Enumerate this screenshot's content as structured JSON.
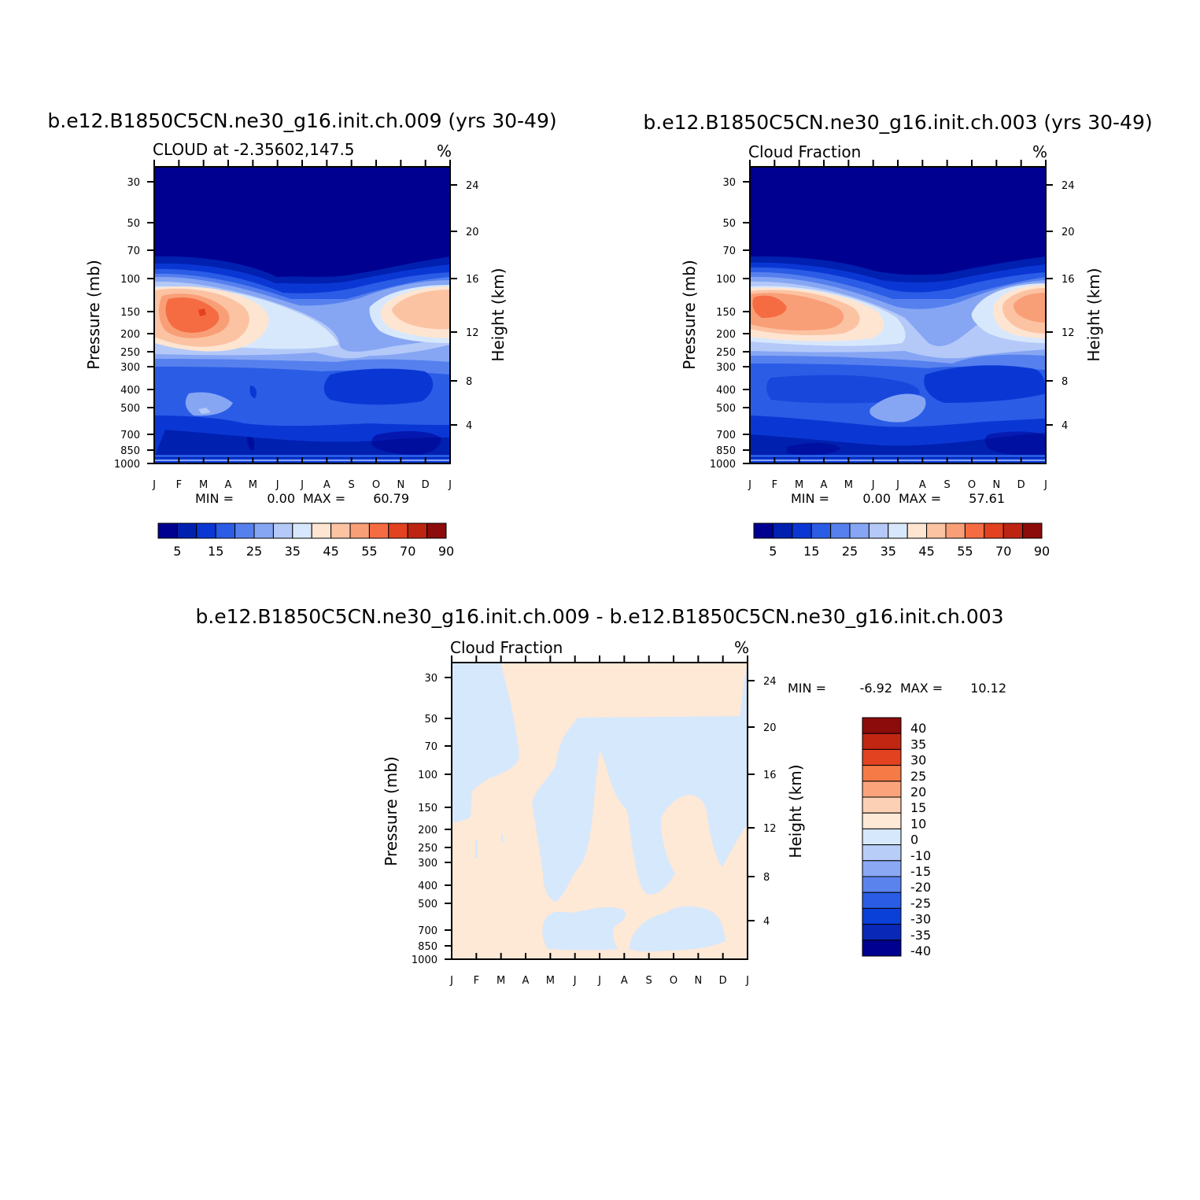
{
  "colors": {
    "seq": [
      "#000090",
      "#0020b0",
      "#0a37d4",
      "#2a5ce6",
      "#5680ee",
      "#86a6f4",
      "#b4c9f8",
      "#d8e8fc",
      "#fde5d2",
      "#fcc3a3",
      "#f99f78",
      "#f66c42",
      "#e2421f",
      "#bd2512",
      "#8c0b0b"
    ],
    "diff_pos": "#fee8d6",
    "diff_neg": "#d6e8fc",
    "diff_bar": [
      "#000090",
      "#0a28b8",
      "#0a3fd8",
      "#2a5ce6",
      "#5a83ee",
      "#8aa8f4",
      "#b8cdf8",
      "#d6e8fc",
      "#fee8d6",
      "#fcd0b4",
      "#fba47c",
      "#f67a46",
      "#e2421f",
      "#c02612",
      "#8c0b0b"
    ]
  },
  "charts": [
    {
      "type": "heatmap",
      "title": "b.e12.B1850C5CN.ne30_g16.init.ch.009 (yrs 30-49)",
      "left_string": "CLOUD at -2.35602,147.5",
      "right_string": "%",
      "ylabel": "Pressure (mb)",
      "y2label": "Height (km)",
      "x_tick_labels": [
        "J",
        "F",
        "M",
        "A",
        "M",
        "J",
        "J",
        "A",
        "S",
        "O",
        "N",
        "D",
        "J"
      ],
      "y_tick_labels": [
        "30",
        "50",
        "70",
        "100",
        "150",
        "200",
        "250",
        "300",
        "400",
        "500",
        "700",
        "850",
        "1000"
      ],
      "y2_tick_labels": [
        "24",
        "20",
        "16",
        "12",
        "8",
        "4"
      ],
      "min_label": "MIN =",
      "min_value": "0.00",
      "max_label": "MAX =",
      "max_value": "60.79",
      "colorbar_labels": [
        "5",
        "15",
        "25",
        "35",
        "45",
        "55",
        "70",
        "90"
      ]
    },
    {
      "type": "heatmap",
      "title": "b.e12.B1850C5CN.ne30_g16.init.ch.003 (yrs 30-49)",
      "left_string": "Cloud Fraction",
      "right_string": "%",
      "ylabel": "Pressure (mb)",
      "y2label": "Height (km)",
      "x_tick_labels": [
        "J",
        "F",
        "M",
        "A",
        "M",
        "J",
        "J",
        "A",
        "S",
        "O",
        "N",
        "D",
        "J"
      ],
      "y_tick_labels": [
        "30",
        "50",
        "70",
        "100",
        "150",
        "200",
        "250",
        "300",
        "400",
        "500",
        "700",
        "850",
        "1000"
      ],
      "y2_tick_labels": [
        "24",
        "20",
        "16",
        "12",
        "8",
        "4"
      ],
      "min_label": "MIN =",
      "min_value": "0.00",
      "max_label": "MAX =",
      "max_value": "57.61",
      "colorbar_labels": [
        "5",
        "15",
        "25",
        "35",
        "45",
        "55",
        "70",
        "90"
      ]
    },
    {
      "type": "heatmap",
      "title": "b.e12.B1850C5CN.ne30_g16.init.ch.009 - b.e12.B1850C5CN.ne30_g16.init.ch.003",
      "left_string": "Cloud Fraction",
      "right_string": "%",
      "ylabel": "Pressure (mb)",
      "y2label": "Height (km)",
      "x_tick_labels": [
        "J",
        "F",
        "M",
        "A",
        "M",
        "J",
        "J",
        "A",
        "S",
        "O",
        "N",
        "D",
        "J"
      ],
      "y_tick_labels": [
        "30",
        "50",
        "70",
        "100",
        "150",
        "200",
        "250",
        "300",
        "400",
        "500",
        "700",
        "850",
        "1000"
      ],
      "y2_tick_labels": [
        "24",
        "20",
        "16",
        "12",
        "8",
        "4"
      ],
      "min_label": "MIN =",
      "min_value": "-6.92",
      "max_label": "MAX =",
      "max_value": "10.12",
      "colorbar_labels": [
        "40",
        "35",
        "30",
        "25",
        "20",
        "15",
        "10",
        "0",
        "-10",
        "-15",
        "-20",
        "-25",
        "-30",
        "-35",
        "-40"
      ]
    }
  ]
}
